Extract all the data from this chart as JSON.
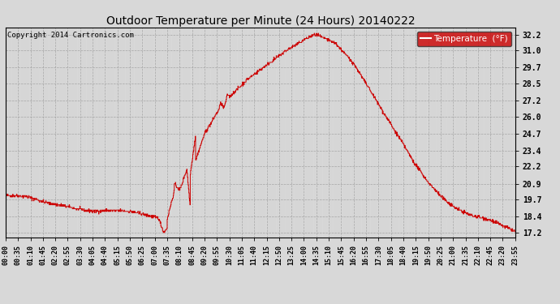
{
  "title": "Outdoor Temperature per Minute (24 Hours) 20140222",
  "copyright_text": "Copyright 2014 Cartronics.com",
  "legend_label": "Temperature  (°F)",
  "line_color": "#cc0000",
  "background_color": "#d8d8d8",
  "grid_color": "#aaaaaa",
  "yticks": [
    17.2,
    18.4,
    19.7,
    20.9,
    22.2,
    23.4,
    24.7,
    26.0,
    27.2,
    28.5,
    29.7,
    31.0,
    32.2
  ],
  "ymin": 16.85,
  "ymax": 32.75,
  "x_tick_interval_minutes": 35,
  "total_minutes": 1440
}
